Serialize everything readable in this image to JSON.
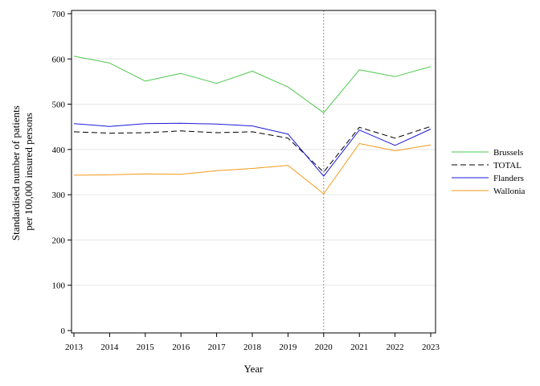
{
  "chart_data": {
    "type": "line",
    "title": "",
    "xlabel": "Year",
    "ylabel_lines": [
      "Standardised number of patients",
      "per 100,000 insured persons"
    ],
    "x": [
      2013,
      2014,
      2015,
      2016,
      2017,
      2018,
      2019,
      2020,
      2021,
      2022,
      2023
    ],
    "xticks": [
      "2013",
      "2014",
      "2015",
      "2016",
      "2017",
      "2018",
      "2019",
      "2020",
      "2021",
      "2022",
      "2023"
    ],
    "ylim": [
      0,
      700
    ],
    "yticks": [
      "0",
      "100",
      "200",
      "300",
      "400",
      "500",
      "600",
      "700"
    ],
    "grid": "horizontal",
    "reference_line": {
      "x": 2020,
      "color": "#a05a5a",
      "style": "dotted"
    },
    "legend_position": "right",
    "series": [
      {
        "name": "Brussels",
        "color": "#4ec94e",
        "dash": "solid",
        "values": [
          606,
          591,
          551,
          568,
          546,
          573,
          538,
          481,
          576,
          561,
          583
        ]
      },
      {
        "name": "TOTAL",
        "color": "#000000",
        "dash": "dashed",
        "values": [
          439,
          436,
          437,
          441,
          437,
          439,
          425,
          350,
          449,
          425,
          451
        ]
      },
      {
        "name": "Flanders",
        "color": "#1a1adb",
        "dash": "solid",
        "values": [
          457,
          451,
          457,
          458,
          456,
          452,
          434,
          341,
          443,
          409,
          445
        ]
      },
      {
        "name": "Wallonia",
        "color": "#f39a1c",
        "dash": "solid",
        "values": [
          343,
          344,
          346,
          345,
          353,
          358,
          365,
          302,
          413,
          397,
          410
        ]
      }
    ]
  }
}
